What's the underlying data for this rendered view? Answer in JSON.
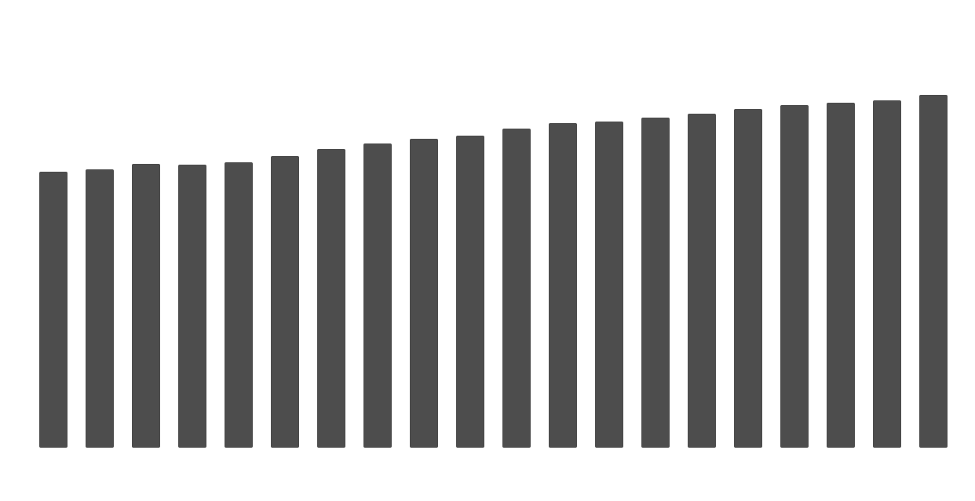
{
  "chart_data": {
    "type": "bar",
    "categories": [
      null,
      null,
      null,
      null,
      null,
      null,
      null,
      null,
      null,
      null,
      null,
      null,
      null,
      null,
      null,
      null,
      null,
      null,
      null,
      null
    ],
    "values": [
      352,
      355,
      362,
      361,
      364,
      372,
      381,
      388,
      394,
      398,
      407,
      414,
      416,
      421,
      426,
      432,
      437,
      440,
      443,
      450
    ],
    "color": "#4d4d4d",
    "ylim": [
      0,
      571
    ]
  }
}
